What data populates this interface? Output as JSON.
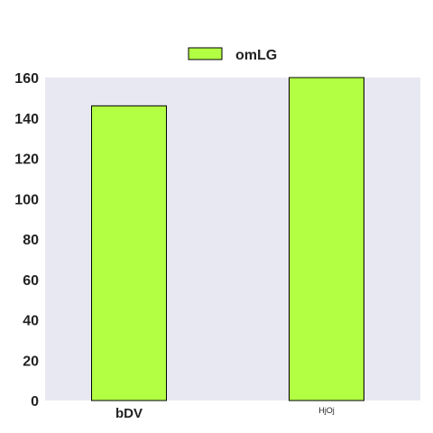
{
  "chart_data": {
    "type": "bar",
    "categories": [
      "bDV",
      "HjOj"
    ],
    "series": [
      {
        "name": "omLG",
        "values": [
          146,
          160
        ]
      }
    ],
    "ylim": [
      0,
      160
    ],
    "yticks": [
      0,
      20,
      40,
      60,
      80,
      100,
      120,
      140,
      160
    ],
    "title": "",
    "xlabel": "",
    "ylabel": "",
    "grid": false,
    "legend_position": "top-center",
    "colors": {
      "bar_fill": "#b2ff44",
      "bar_stroke": "#000000",
      "plot_background": "#e8e8f2"
    }
  }
}
